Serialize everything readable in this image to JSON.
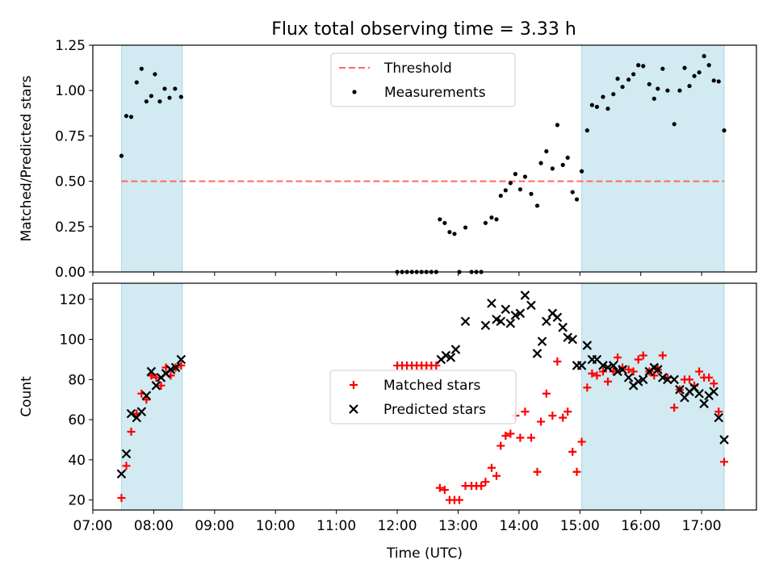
{
  "title": "Flux total observing time = 3.33 h",
  "colors": {
    "threshold": "#ff6666",
    "measurements": "#000000",
    "matched": "#ff0000",
    "predicted": "#000000",
    "shade": "#add8e6"
  },
  "chart_data": [
    {
      "type": "scatter",
      "ylabel": "Matched/Predicted stars",
      "xlim_hours": [
        7.0,
        17.9
      ],
      "ylim": [
        0.0,
        1.25
      ],
      "yticks": [
        "0.00",
        "0.25",
        "0.50",
        "0.75",
        "1.00",
        "1.25"
      ],
      "yticks_values": [
        0,
        0.25,
        0.5,
        0.75,
        1.0,
        1.25
      ],
      "shaded_intervals_hours": [
        [
          7.47,
          8.47
        ],
        [
          15.03,
          17.37
        ]
      ],
      "threshold": {
        "name": "Threshold",
        "value": 0.5,
        "style": "dashed"
      },
      "legend_position": "upper center",
      "series": [
        {
          "name": "Measurements",
          "marker": "dot",
          "points": [
            [
              7.47,
              0.64
            ],
            [
              7.55,
              0.86
            ],
            [
              7.63,
              0.855
            ],
            [
              7.72,
              1.045
            ],
            [
              7.8,
              1.12
            ],
            [
              7.88,
              0.94
            ],
            [
              7.96,
              0.97
            ],
            [
              8.02,
              1.09
            ],
            [
              8.1,
              0.94
            ],
            [
              8.18,
              1.01
            ],
            [
              8.26,
              0.96
            ],
            [
              8.35,
              1.01
            ],
            [
              8.45,
              0.965
            ],
            [
              12.0,
              0.0
            ],
            [
              12.08,
              0.0
            ],
            [
              12.16,
              0.0
            ],
            [
              12.24,
              0.0
            ],
            [
              12.32,
              0.0
            ],
            [
              12.4,
              0.0
            ],
            [
              12.48,
              0.0
            ],
            [
              12.56,
              0.0
            ],
            [
              12.64,
              0.0
            ],
            [
              12.7,
              0.29
            ],
            [
              12.78,
              0.27
            ],
            [
              12.86,
              0.22
            ],
            [
              12.94,
              0.21
            ],
            [
              13.02,
              0.0
            ],
            [
              13.12,
              0.245
            ],
            [
              13.22,
              0.0
            ],
            [
              13.3,
              0.0
            ],
            [
              13.38,
              0.0
            ],
            [
              13.45,
              0.27
            ],
            [
              13.55,
              0.3
            ],
            [
              13.63,
              0.29
            ],
            [
              13.7,
              0.42
            ],
            [
              13.78,
              0.45
            ],
            [
              13.86,
              0.49
            ],
            [
              13.94,
              0.54
            ],
            [
              14.02,
              0.455
            ],
            [
              14.1,
              0.525
            ],
            [
              14.2,
              0.43
            ],
            [
              14.3,
              0.365
            ],
            [
              14.36,
              0.6
            ],
            [
              14.45,
              0.665
            ],
            [
              14.55,
              0.57
            ],
            [
              14.63,
              0.81
            ],
            [
              14.72,
              0.59
            ],
            [
              14.8,
              0.63
            ],
            [
              14.88,
              0.44
            ],
            [
              14.95,
              0.4
            ],
            [
              15.03,
              0.555
            ],
            [
              15.12,
              0.78
            ],
            [
              15.2,
              0.92
            ],
            [
              15.28,
              0.91
            ],
            [
              15.38,
              0.965
            ],
            [
              15.46,
              0.9
            ],
            [
              15.55,
              0.98
            ],
            [
              15.62,
              1.065
            ],
            [
              15.7,
              1.02
            ],
            [
              15.8,
              1.06
            ],
            [
              15.88,
              1.09
            ],
            [
              15.96,
              1.14
            ],
            [
              16.04,
              1.135
            ],
            [
              16.14,
              1.035
            ],
            [
              16.22,
              0.955
            ],
            [
              16.28,
              1.01
            ],
            [
              16.36,
              1.12
            ],
            [
              16.44,
              1.0
            ],
            [
              16.55,
              0.815
            ],
            [
              16.64,
              1.0
            ],
            [
              16.72,
              1.125
            ],
            [
              16.8,
              1.025
            ],
            [
              16.88,
              1.08
            ],
            [
              16.96,
              1.1
            ],
            [
              17.04,
              1.19
            ],
            [
              17.12,
              1.14
            ],
            [
              17.2,
              1.055
            ],
            [
              17.28,
              1.05
            ],
            [
              17.37,
              0.78
            ]
          ]
        }
      ]
    },
    {
      "type": "scatter",
      "ylabel": "Count",
      "xlabel": "Time (UTC)",
      "xlim_hours": [
        7.0,
        17.9
      ],
      "ylim": [
        15,
        128
      ],
      "yticks": [
        "20",
        "40",
        "60",
        "80",
        "100",
        "120"
      ],
      "yticks_values": [
        20,
        40,
        60,
        80,
        100,
        120
      ],
      "xticks": [
        "07:00",
        "08:00",
        "09:00",
        "10:00",
        "11:00",
        "12:00",
        "13:00",
        "14:00",
        "15:00",
        "16:00",
        "17:00"
      ],
      "xticks_hours": [
        7,
        8,
        9,
        10,
        11,
        12,
        13,
        14,
        15,
        16,
        17
      ],
      "shaded_intervals_hours": [
        [
          7.47,
          8.47
        ],
        [
          15.03,
          17.37
        ]
      ],
      "legend_position": "center",
      "series": [
        {
          "name": "Matched stars",
          "marker": "plus",
          "points": [
            [
              7.47,
              21
            ],
            [
              7.55,
              37
            ],
            [
              7.63,
              54
            ],
            [
              7.72,
              63
            ],
            [
              7.8,
              73
            ],
            [
              7.88,
              70
            ],
            [
              7.96,
              82
            ],
            [
              8.04,
              81
            ],
            [
              8.12,
              77
            ],
            [
              8.2,
              86
            ],
            [
              8.28,
              82
            ],
            [
              8.36,
              86
            ],
            [
              8.45,
              87
            ],
            [
              12.0,
              87
            ],
            [
              12.08,
              87
            ],
            [
              12.16,
              87
            ],
            [
              12.24,
              87
            ],
            [
              12.32,
              87
            ],
            [
              12.4,
              87
            ],
            [
              12.48,
              87
            ],
            [
              12.56,
              87
            ],
            [
              12.64,
              87
            ],
            [
              12.7,
              26
            ],
            [
              12.78,
              25
            ],
            [
              12.86,
              20
            ],
            [
              12.94,
              20
            ],
            [
              13.02,
              20
            ],
            [
              13.12,
              27
            ],
            [
              13.22,
              27
            ],
            [
              13.3,
              27
            ],
            [
              13.38,
              27
            ],
            [
              13.45,
              29
            ],
            [
              13.55,
              36
            ],
            [
              13.63,
              32
            ],
            [
              13.7,
              47
            ],
            [
              13.78,
              52
            ],
            [
              13.86,
              53
            ],
            [
              13.94,
              62
            ],
            [
              14.02,
              51
            ],
            [
              14.1,
              64
            ],
            [
              14.2,
              51
            ],
            [
              14.3,
              34
            ],
            [
              14.36,
              59
            ],
            [
              14.45,
              73
            ],
            [
              14.55,
              62
            ],
            [
              14.63,
              89
            ],
            [
              14.72,
              61
            ],
            [
              14.8,
              64
            ],
            [
              14.88,
              44
            ],
            [
              14.95,
              34
            ],
            [
              15.03,
              49
            ],
            [
              15.12,
              76
            ],
            [
              15.2,
              83
            ],
            [
              15.28,
              82
            ],
            [
              15.38,
              84
            ],
            [
              15.46,
              79
            ],
            [
              15.55,
              84
            ],
            [
              15.62,
              91
            ],
            [
              15.7,
              86
            ],
            [
              15.8,
              85
            ],
            [
              15.88,
              84
            ],
            [
              15.96,
              90
            ],
            [
              16.04,
              92
            ],
            [
              16.14,
              84
            ],
            [
              16.22,
              82
            ],
            [
              16.28,
              85
            ],
            [
              16.36,
              92
            ],
            [
              16.44,
              81
            ],
            [
              16.55,
              66
            ],
            [
              16.64,
              75
            ],
            [
              16.72,
              80
            ],
            [
              16.8,
              80
            ],
            [
              16.88,
              77
            ],
            [
              16.96,
              84
            ],
            [
              17.04,
              81
            ],
            [
              17.12,
              81
            ],
            [
              17.2,
              78
            ],
            [
              17.28,
              64
            ],
            [
              17.37,
              39
            ]
          ]
        },
        {
          "name": "Predicted stars",
          "marker": "x",
          "points": [
            [
              7.47,
              33
            ],
            [
              7.55,
              43
            ],
            [
              7.63,
              63
            ],
            [
              7.72,
              61
            ],
            [
              7.8,
              64
            ],
            [
              7.88,
              72
            ],
            [
              7.96,
              84
            ],
            [
              8.04,
              77
            ],
            [
              8.12,
              81
            ],
            [
              8.2,
              83
            ],
            [
              8.28,
              85
            ],
            [
              8.36,
              86
            ],
            [
              8.45,
              90
            ],
            [
              12.72,
              90
            ],
            [
              12.8,
              92
            ],
            [
              12.88,
              91
            ],
            [
              12.96,
              95
            ],
            [
              13.12,
              109
            ],
            [
              13.45,
              107
            ],
            [
              13.55,
              118
            ],
            [
              13.63,
              110
            ],
            [
              13.7,
              109
            ],
            [
              13.78,
              115
            ],
            [
              13.86,
              108
            ],
            [
              13.94,
              112
            ],
            [
              14.02,
              113
            ],
            [
              14.1,
              122
            ],
            [
              14.2,
              117
            ],
            [
              14.3,
              93
            ],
            [
              14.38,
              99
            ],
            [
              14.45,
              109
            ],
            [
              14.55,
              113
            ],
            [
              14.63,
              111
            ],
            [
              14.72,
              106
            ],
            [
              14.8,
              101
            ],
            [
              14.88,
              100
            ],
            [
              14.95,
              87
            ],
            [
              15.03,
              87
            ],
            [
              15.12,
              97
            ],
            [
              15.2,
              90
            ],
            [
              15.28,
              90
            ],
            [
              15.38,
              87
            ],
            [
              15.46,
              86
            ],
            [
              15.55,
              87
            ],
            [
              15.62,
              84
            ],
            [
              15.7,
              85
            ],
            [
              15.8,
              81
            ],
            [
              15.88,
              77
            ],
            [
              15.96,
              79
            ],
            [
              16.04,
              80
            ],
            [
              16.14,
              84
            ],
            [
              16.22,
              86
            ],
            [
              16.28,
              85
            ],
            [
              16.36,
              81
            ],
            [
              16.44,
              80
            ],
            [
              16.55,
              80
            ],
            [
              16.64,
              75
            ],
            [
              16.72,
              71
            ],
            [
              16.8,
              74
            ],
            [
              16.88,
              76
            ],
            [
              16.96,
              73
            ],
            [
              17.04,
              68
            ],
            [
              17.12,
              72
            ],
            [
              17.2,
              74
            ],
            [
              17.28,
              61
            ],
            [
              17.37,
              50
            ]
          ]
        }
      ]
    }
  ]
}
